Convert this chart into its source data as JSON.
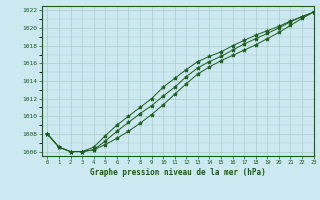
{
  "title": "Graphe pression niveau de la mer (hPa)",
  "background_color": "#cce8f0",
  "grid_color": "#aacccc",
  "line_color": "#1a5c1a",
  "marker_color": "#1a5c1a",
  "xlim": [
    -0.5,
    23
  ],
  "ylim": [
    1005.5,
    1022.5
  ],
  "xticks": [
    0,
    1,
    2,
    3,
    4,
    5,
    6,
    7,
    8,
    9,
    10,
    11,
    12,
    13,
    14,
    15,
    16,
    17,
    18,
    19,
    20,
    21,
    22,
    23
  ],
  "yticks": [
    1006,
    1008,
    1010,
    1012,
    1014,
    1016,
    1018,
    1020,
    1022
  ],
  "series": [
    [
      1008.0,
      1006.5,
      1006.0,
      1006.0,
      1006.2,
      1006.8,
      1007.5,
      1008.3,
      1009.2,
      1010.2,
      1011.3,
      1012.5,
      1013.7,
      1014.8,
      1015.6,
      1016.3,
      1016.9,
      1017.5,
      1018.1,
      1018.8,
      1019.5,
      1020.3,
      1021.1,
      1021.8
    ],
    [
      1008.0,
      1006.5,
      1006.0,
      1006.0,
      1006.2,
      1007.2,
      1008.3,
      1009.3,
      1010.3,
      1011.2,
      1012.3,
      1013.3,
      1014.5,
      1015.5,
      1016.2,
      1016.8,
      1017.5,
      1018.2,
      1018.8,
      1019.4,
      1020.0,
      1020.7,
      1021.3,
      1021.8
    ],
    [
      1008.0,
      1006.5,
      1006.0,
      1006.0,
      1006.5,
      1007.8,
      1009.0,
      1010.0,
      1011.0,
      1012.0,
      1013.3,
      1014.3,
      1015.3,
      1016.2,
      1016.8,
      1017.3,
      1018.0,
      1018.6,
      1019.2,
      1019.7,
      1020.2,
      1020.8,
      1021.3,
      1021.8
    ]
  ]
}
